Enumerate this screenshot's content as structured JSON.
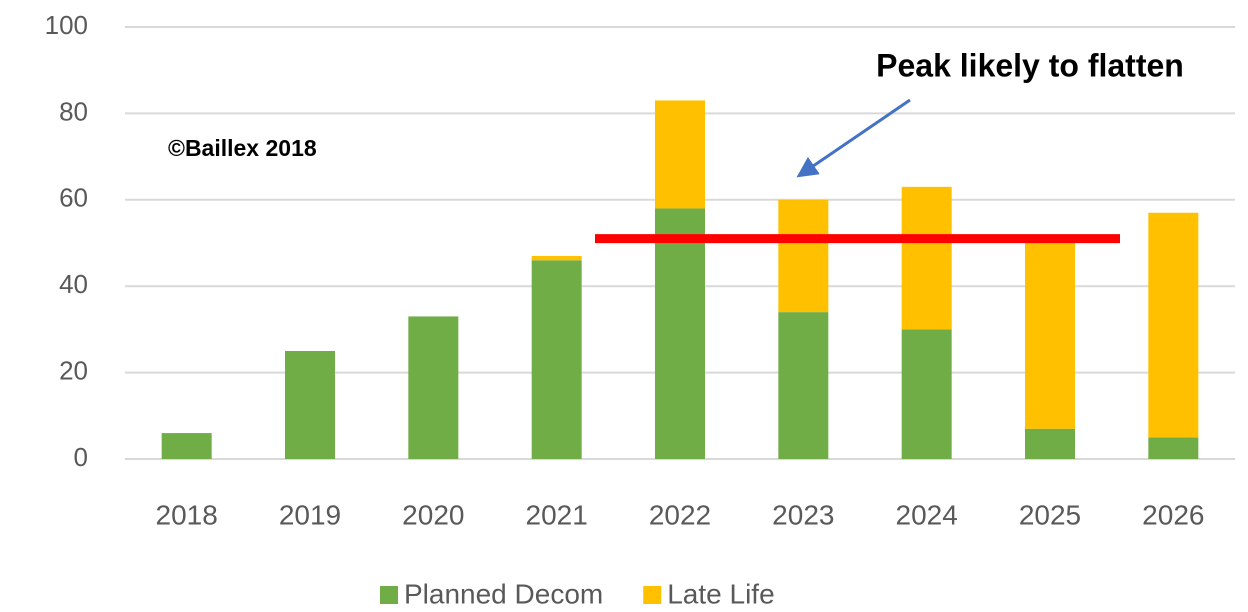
{
  "chart_data": {
    "type": "stacked_bar",
    "categories": [
      "2018",
      "2019",
      "2020",
      "2021",
      "2022",
      "2023",
      "2024",
      "2025",
      "2026"
    ],
    "series": [
      {
        "name": "Planned Decom",
        "color": "#70ad47",
        "values": [
          6,
          25,
          33,
          46,
          58,
          34,
          30,
          7,
          5
        ]
      },
      {
        "name": "Late Life",
        "color": "#ffc000",
        "values": [
          0,
          0,
          0,
          1,
          25,
          26,
          33,
          43,
          52
        ]
      }
    ],
    "ylim": [
      0,
      100
    ],
    "yticks": [
      0,
      20,
      40,
      60,
      80,
      100
    ],
    "grid": true,
    "annotations": {
      "peak": "Peak likely to flatten",
      "copyright": "©Baillex 2018"
    },
    "peak_line": {
      "value": 51,
      "color": "#ff0000"
    }
  }
}
